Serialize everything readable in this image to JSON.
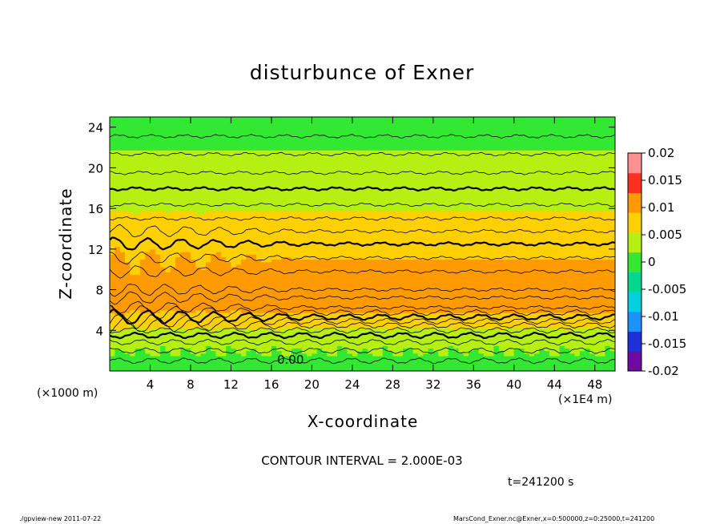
{
  "chart_data": {
    "type": "heatmap",
    "title": "disturbunce of Exner",
    "xlabel": "X-coordinate",
    "ylabel": "Z-coordinate",
    "x_unit_left": "(×1000 m)",
    "x_unit_right": "(×1E4 m)",
    "xlim": [
      0,
      50
    ],
    "ylim": [
      0,
      25
    ],
    "x_ticks": [
      "4",
      "8",
      "12",
      "16",
      "20",
      "24",
      "28",
      "32",
      "36",
      "40",
      "44",
      "48"
    ],
    "y_ticks": [
      "4",
      "8",
      "12",
      "16",
      "20",
      "24"
    ],
    "colorbar": {
      "ticks": [
        "0.02",
        "0.015",
        "0.01",
        "0.005",
        "0",
        "-0.005",
        "-0.01",
        "-0.015",
        "-0.02"
      ],
      "range": [
        -0.02,
        0.02
      ],
      "colors": [
        "#6e0aa0",
        "#2030d8",
        "#1e90ff",
        "#00d0e0",
        "#00d890",
        "#33e833",
        "#b6f013",
        "#ffd000",
        "#ff9a00",
        "#ff3020",
        "#ff9090"
      ]
    },
    "contour_interval": "CONTOUR INTERVAL = 2.000E-03",
    "contour_label": "0.00",
    "profile_z": [
      0.5,
      1.5,
      2.5,
      3.5,
      4.5,
      5.5,
      6.5,
      7.5,
      8.5,
      9.5,
      10.5,
      11.5,
      12.5,
      13.5,
      14.5,
      15.5,
      16.5,
      17.5,
      18.5,
      19.5,
      20.5,
      21.5,
      22.5,
      23.5,
      24.5
    ],
    "profile_values": [
      0.0005,
      0.0015,
      0.0025,
      0.004,
      0.006,
      0.0085,
      0.0105,
      0.0112,
      0.0108,
      0.0102,
      0.0095,
      0.0087,
      0.008,
      0.0072,
      0.0064,
      0.0056,
      0.0049,
      0.0043,
      0.0036,
      0.003,
      0.0025,
      0.0019,
      0.0013,
      0.0008,
      0.0004
    ]
  },
  "annotations": {
    "time": "t=241200 s",
    "footer_left": "./gpview-new   2011-07-22",
    "footer_right": "MarsCond_Exner.nc@Exner,x=0:500000,z=0:25000,t=241200"
  }
}
